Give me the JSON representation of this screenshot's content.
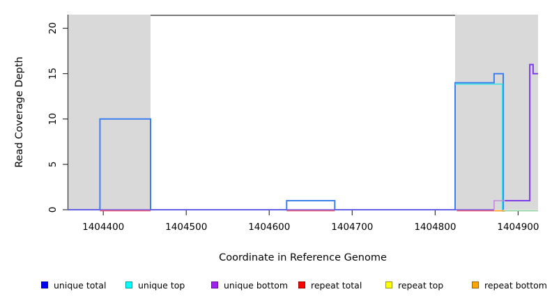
{
  "chart_data": {
    "type": "line",
    "subtype": "step-coverage",
    "title": "",
    "xlabel": "Coordinate in Reference Genome",
    "ylabel": "Read Coverage Depth",
    "xlim": [
      1404357,
      1404924
    ],
    "ylim": [
      0,
      21.5
    ],
    "x_ticks": [
      1404400,
      1404500,
      1404600,
      1404700,
      1404800,
      1404900
    ],
    "y_ticks": [
      0,
      5,
      10,
      15,
      20
    ],
    "grid": false,
    "background_color": "#ffffff",
    "axis_color": "#333333",
    "shaded_regions": [
      {
        "name": "masked-region-left",
        "x0": 1404357,
        "x1": 1404457,
        "color": "#d9d9d9"
      },
      {
        "name": "masked-region-right",
        "x0": 1404824,
        "x1": 1404924,
        "color": "#d9d9d9"
      }
    ],
    "series": [
      {
        "name": "plot-top-line",
        "color": "#4d4d4d",
        "width": 1.6,
        "segments": [
          [
            [
              1404457,
              21.42
            ],
            [
              1404824,
              21.42
            ]
          ]
        ]
      },
      {
        "name": "unique-total",
        "color": "#3b7ef0",
        "width": 2,
        "segments": [
          [
            [
              1404357,
              0
            ],
            [
              1404396,
              0
            ],
            [
              1404396,
              10
            ],
            [
              1404457,
              10
            ],
            [
              1404457,
              0
            ],
            [
              1404621,
              0
            ],
            [
              1404621,
              1
            ],
            [
              1404679,
              1
            ],
            [
              1404679,
              0
            ],
            [
              1404824,
              0
            ],
            [
              1404824,
              14
            ],
            [
              1404871,
              14
            ],
            [
              1404871,
              15
            ],
            [
              1404882,
              15
            ],
            [
              1404882,
              0
            ]
          ]
        ]
      },
      {
        "name": "unique-top",
        "color": "#38dfe0",
        "width": 1.6,
        "dy": 2,
        "segments": [
          [
            [
              1404824,
              14
            ],
            [
              1404881,
              14
            ],
            [
              1404881,
              0
            ],
            [
              1404884,
              0
            ]
          ]
        ]
      },
      {
        "name": "unique-bottom-zero",
        "color": "#6f55e8",
        "width": 1.6,
        "segments": [
          [
            [
              1404357,
              0
            ],
            [
              1404871,
              0
            ]
          ]
        ]
      },
      {
        "name": "repeat-total",
        "color": "#e8536b",
        "width": 1.4,
        "dy": 1.5,
        "segments": [
          [
            [
              1404396,
              0
            ],
            [
              1404457,
              0
            ]
          ],
          [
            [
              1404621,
              0
            ],
            [
              1404679,
              0
            ]
          ],
          [
            [
              1404826,
              0
            ],
            [
              1404871,
              0
            ]
          ]
        ]
      },
      {
        "name": "repeat-bottom",
        "color": "#ffa01e",
        "width": 1.8,
        "dy": 1.5,
        "segments": [
          [
            [
              1404871,
              0
            ],
            [
              1404884,
              0
            ]
          ]
        ]
      },
      {
        "name": "repeat-top-overlap",
        "color": "#85cb95",
        "width": 1.4,
        "dy": 1.5,
        "segments": [
          [
            [
              1404884,
              0
            ],
            [
              1404924,
              0
            ]
          ]
        ]
      },
      {
        "name": "unique-bottom-rise",
        "color": "#c487de",
        "width": 1.6,
        "segments": [
          [
            [
              1404871,
              0
            ],
            [
              1404871,
              1
            ],
            [
              1404884,
              1
            ]
          ]
        ]
      },
      {
        "name": "unique-bottom-right",
        "color": "#7c3aed",
        "width": 2,
        "segments": [
          [
            [
              1404884,
              1
            ],
            [
              1404914,
              1
            ],
            [
              1404914,
              16
            ],
            [
              1404918,
              16
            ],
            [
              1404918,
              15
            ],
            [
              1404924,
              15
            ]
          ]
        ]
      }
    ],
    "legend": {
      "position": "bottom",
      "items": [
        {
          "label": "unique total",
          "fill": "#0000ff",
          "border": "#00009a"
        },
        {
          "label": "unique top",
          "fill": "#00ffff",
          "border": "#009a9a"
        },
        {
          "label": "unique bottom",
          "fill": "#a020f0",
          "border": "#6a0fa0"
        },
        {
          "label": "repeat total",
          "fill": "#ff0000",
          "border": "#9a0000"
        },
        {
          "label": "repeat top",
          "fill": "#ffff00",
          "border": "#9a9a00"
        },
        {
          "label": "repeat bottom",
          "fill": "#ffa500",
          "border": "#9a6400"
        }
      ]
    }
  }
}
